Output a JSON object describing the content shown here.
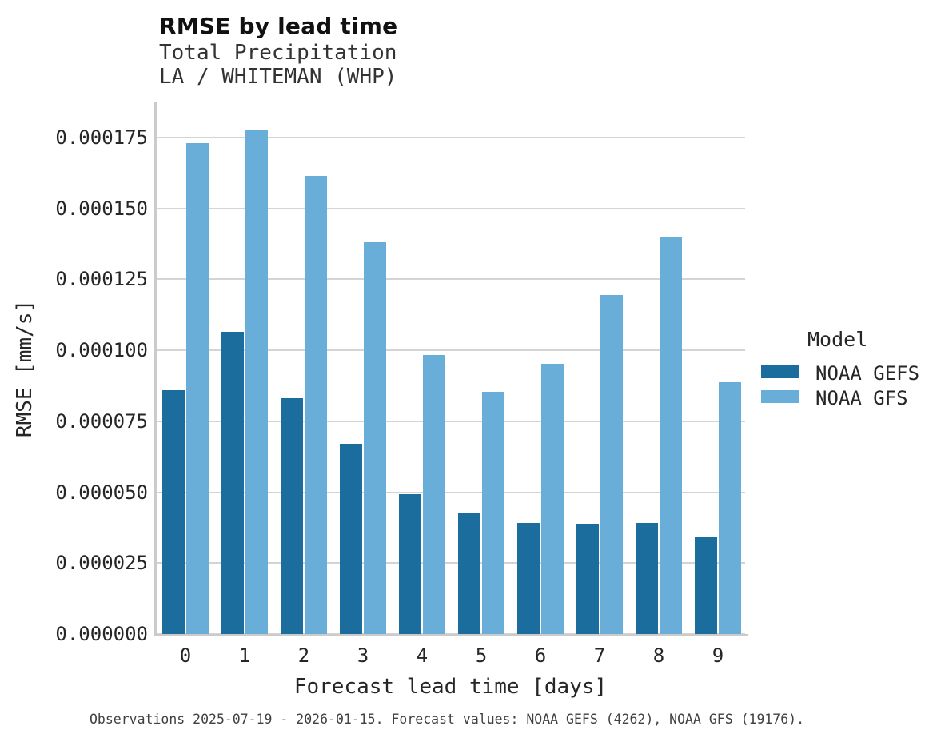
{
  "title": "RMSE by lead time",
  "subtitle_variable": "Total Precipitation",
  "subtitle_location": "LA / WHITEMAN (WHP)",
  "footer_note": "Observations 2025-07-19 - 2026-01-15. Forecast values: NOAA GEFS (4262), NOAA GFS (19176).",
  "colors": {
    "gefs_bar": "#1A6D9C",
    "gfs_bar": "#69AED8",
    "gridline": "#D4D4D4",
    "spine": "#CBCBCB"
  },
  "legend": {
    "title": "Model",
    "entries": [
      {
        "label": "NOAA GEFS",
        "color": "#1A6D9C"
      },
      {
        "label": "NOAA GFS",
        "color": "#69AED8"
      }
    ]
  },
  "chart_data": {
    "type": "bar",
    "title": "RMSE by lead time",
    "subtitle": [
      "Total Precipitation",
      "LA / WHITEMAN (WHP)"
    ],
    "xlabel": "Forecast lead time [days]",
    "ylabel": "RMSE [mm/s]",
    "categories": [
      "0",
      "1",
      "2",
      "3",
      "4",
      "5",
      "6",
      "7",
      "8",
      "9"
    ],
    "series": [
      {
        "name": "NOAA GEFS",
        "color": "#1A6D9C",
        "values": [
          8.6e-05,
          0.0001065,
          8.3e-05,
          6.7e-05,
          4.93e-05,
          4.26e-05,
          3.91e-05,
          3.89e-05,
          3.92e-05,
          3.45e-05
        ]
      },
      {
        "name": "NOAA GFS",
        "color": "#69AED8",
        "values": [
          0.000173,
          0.0001776,
          0.0001615,
          0.0001382,
          9.84e-05,
          8.54e-05,
          9.53e-05,
          0.0001194,
          0.00014,
          8.87e-05
        ]
      }
    ],
    "ylim": [
      0,
      0.0001874
    ],
    "yticks": [
      {
        "value": 0.0,
        "label": "0.000000"
      },
      {
        "value": 2.5e-05,
        "label": "0.000025"
      },
      {
        "value": 5e-05,
        "label": "0.000050"
      },
      {
        "value": 7.5e-05,
        "label": "0.000075"
      },
      {
        "value": 0.0001,
        "label": "0.000100"
      },
      {
        "value": 0.000125,
        "label": "0.000125"
      },
      {
        "value": 0.00015,
        "label": "0.000150"
      },
      {
        "value": 0.000175,
        "label": "0.000175"
      }
    ],
    "grid": "horizontal",
    "legend_position": "right"
  }
}
